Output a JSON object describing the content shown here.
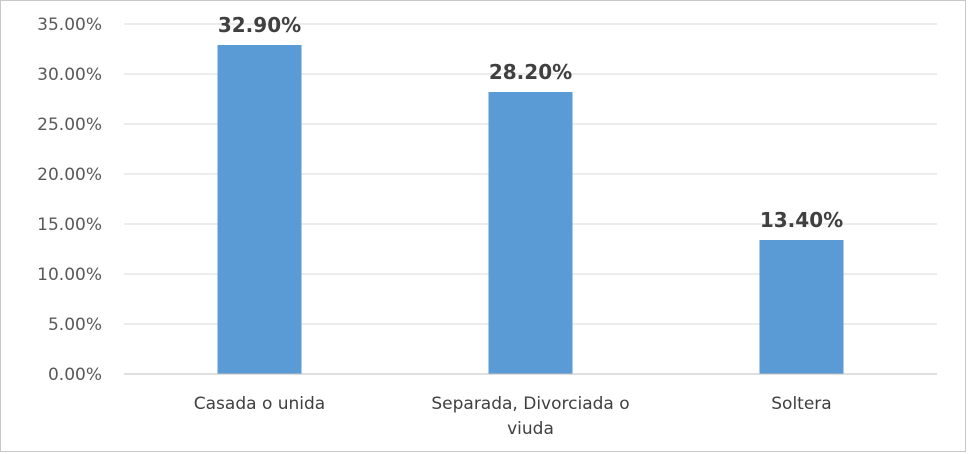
{
  "chart_data": {
    "type": "bar",
    "categories": [
      [
        "Casada o unida"
      ],
      [
        "Separada, Divorciada o",
        "viuda"
      ],
      [
        "Soltera"
      ]
    ],
    "values": [
      32.9,
      28.2,
      13.4
    ],
    "data_labels": [
      "32.90%",
      "28.20%",
      "13.40%"
    ],
    "yticks": [
      0,
      5,
      10,
      15,
      20,
      25,
      30,
      35
    ],
    "ytick_labels": [
      "0.00%",
      "5.00%",
      "10.00%",
      "15.00%",
      "20.00%",
      "25.00%",
      "30.00%",
      "35.00%"
    ],
    "ylim": [
      0,
      35
    ],
    "grid": true,
    "legend": "none",
    "title": "",
    "xlabel": "",
    "ylabel": "",
    "bar_color": "#5b9bd5"
  }
}
